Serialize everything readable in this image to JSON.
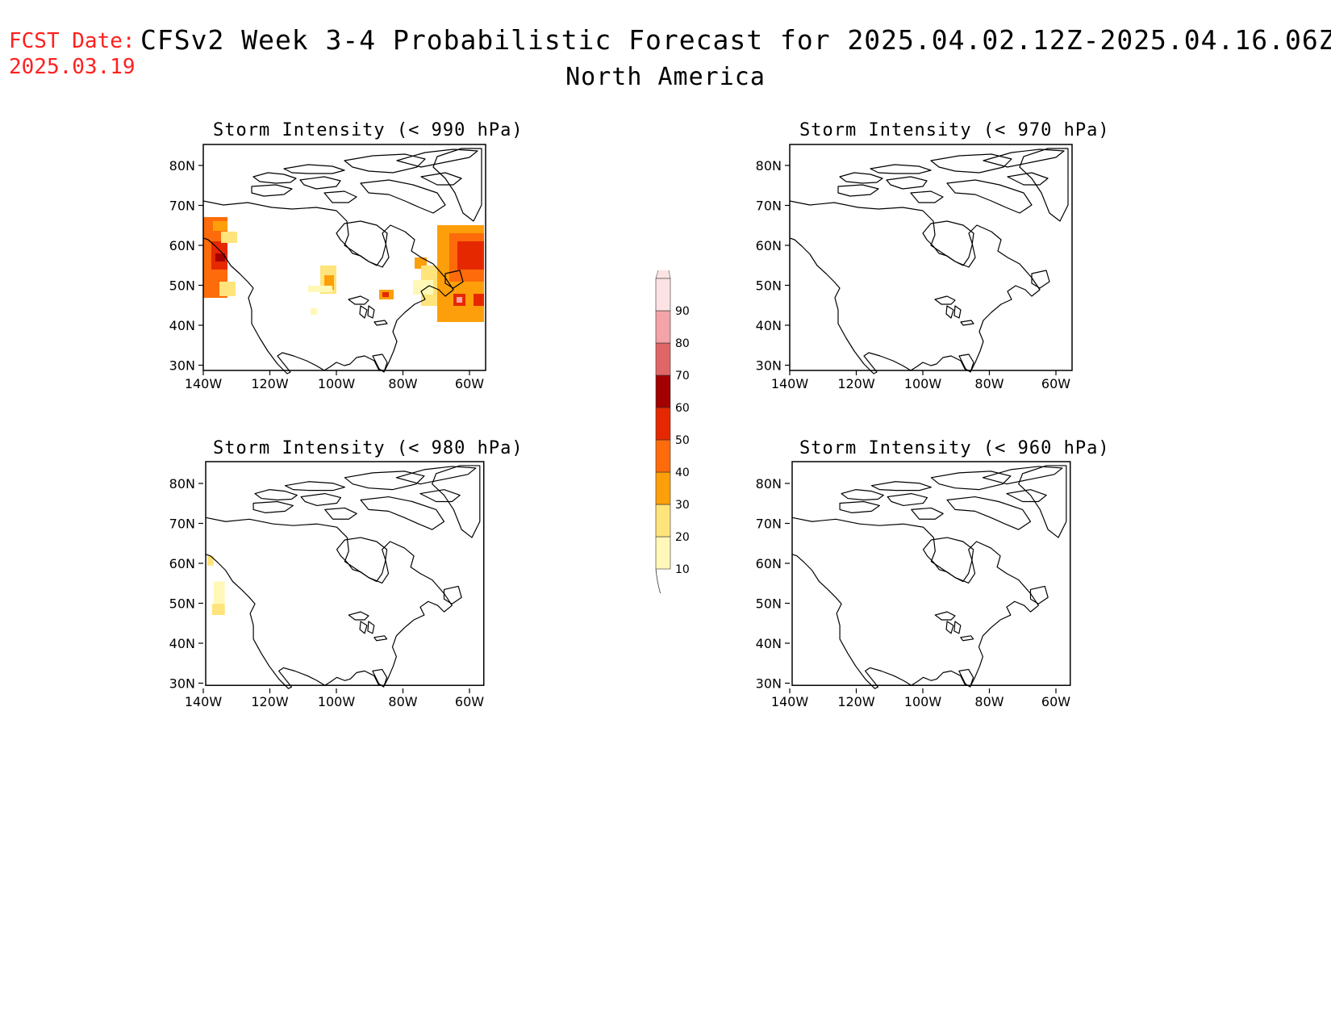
{
  "header": {
    "fcst_label": "FCST Date:",
    "fcst_date": "2025.03.19",
    "title": "CFSv2 Week 3-4 Probabilistic Forecast for 2025.04.02.12Z-2025.04.16.06Z",
    "subtitle": "North America"
  },
  "map": {
    "lon_ticks": [
      "140W",
      "120W",
      "100W",
      "80W",
      "60W"
    ],
    "lat_ticks": [
      "80N",
      "70N",
      "60N",
      "50N",
      "40N",
      "30N"
    ]
  },
  "panels": [
    {
      "id": "p990",
      "title": "Storm Intensity (< 990 hPa)"
    },
    {
      "id": "p970",
      "title": "Storm Intensity (< 970 hPa)"
    },
    {
      "id": "p980",
      "title": "Storm Intensity (< 980 hPa)"
    },
    {
      "id": "p960",
      "title": "Storm Intensity (< 960 hPa)"
    }
  ],
  "colorbar": {
    "labels": [
      "10",
      "20",
      "30",
      "40",
      "50",
      "60",
      "70",
      "80",
      "90"
    ],
    "colors": {
      "c10": "#fff8b8",
      "c20": "#fee47a",
      "c30": "#fd9f0a",
      "c40": "#fd6b0a",
      "c50": "#e62800",
      "c60": "#a30000",
      "c70": "#e06666",
      "c80": "#f4a3a8",
      "c90": "#fde2e4"
    }
  }
}
